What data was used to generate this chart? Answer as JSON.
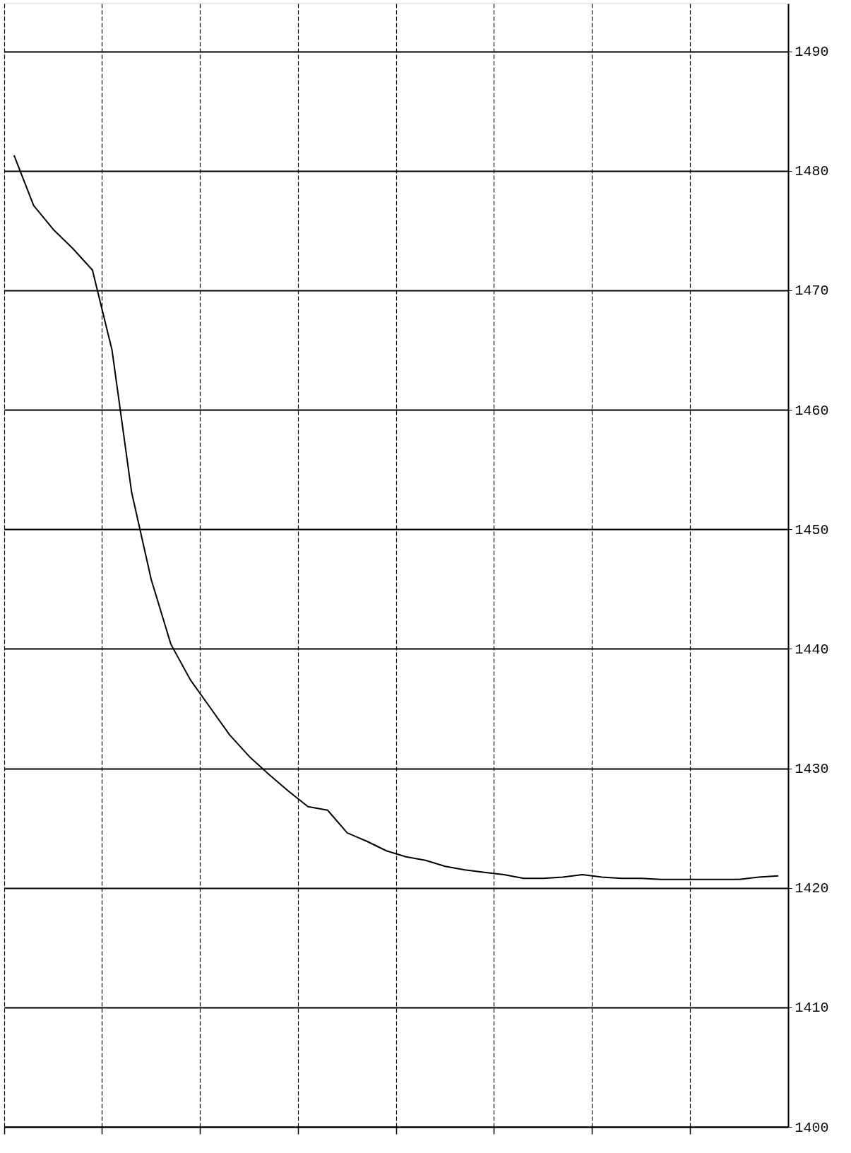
{
  "chart_data": {
    "type": "line",
    "tick_labels": "y",
    "grid": true,
    "categories": [
      null,
      null,
      null,
      null,
      null,
      null,
      null,
      null,
      null,
      null,
      null,
      null,
      null,
      null,
      null,
      null,
      null,
      null,
      null,
      null,
      null,
      null,
      null,
      null,
      null,
      null,
      null,
      null,
      null,
      null,
      null,
      null,
      null,
      null,
      null,
      null,
      null,
      null,
      null,
      null
    ],
    "ylim": [
      1400,
      1494
    ],
    "yticks": [
      1400,
      1410,
      1420,
      1430,
      1440,
      1450,
      1460,
      1470,
      1480,
      1490
    ],
    "series": [
      {
        "color": "#000000",
        "values": [
          1481.3,
          1477.1,
          1475.1,
          1473.5,
          1471.7,
          1465.0,
          1453.1,
          1445.8,
          1440.4,
          1437.4,
          1435.1,
          1432.8,
          1431.0,
          1429.5,
          1428.1,
          1426.8,
          1426.5,
          1424.6,
          1423.9,
          1423.1,
          1422.6,
          1422.3,
          1421.8,
          1421.5,
          1421.3,
          1421.1,
          1420.8,
          1420.8,
          1420.9,
          1421.1,
          1420.9,
          1420.8,
          1420.8,
          1420.7,
          1420.7,
          1420.7,
          1420.7,
          1420.7,
          1420.9,
          1421.0
        ]
      }
    ]
  }
}
